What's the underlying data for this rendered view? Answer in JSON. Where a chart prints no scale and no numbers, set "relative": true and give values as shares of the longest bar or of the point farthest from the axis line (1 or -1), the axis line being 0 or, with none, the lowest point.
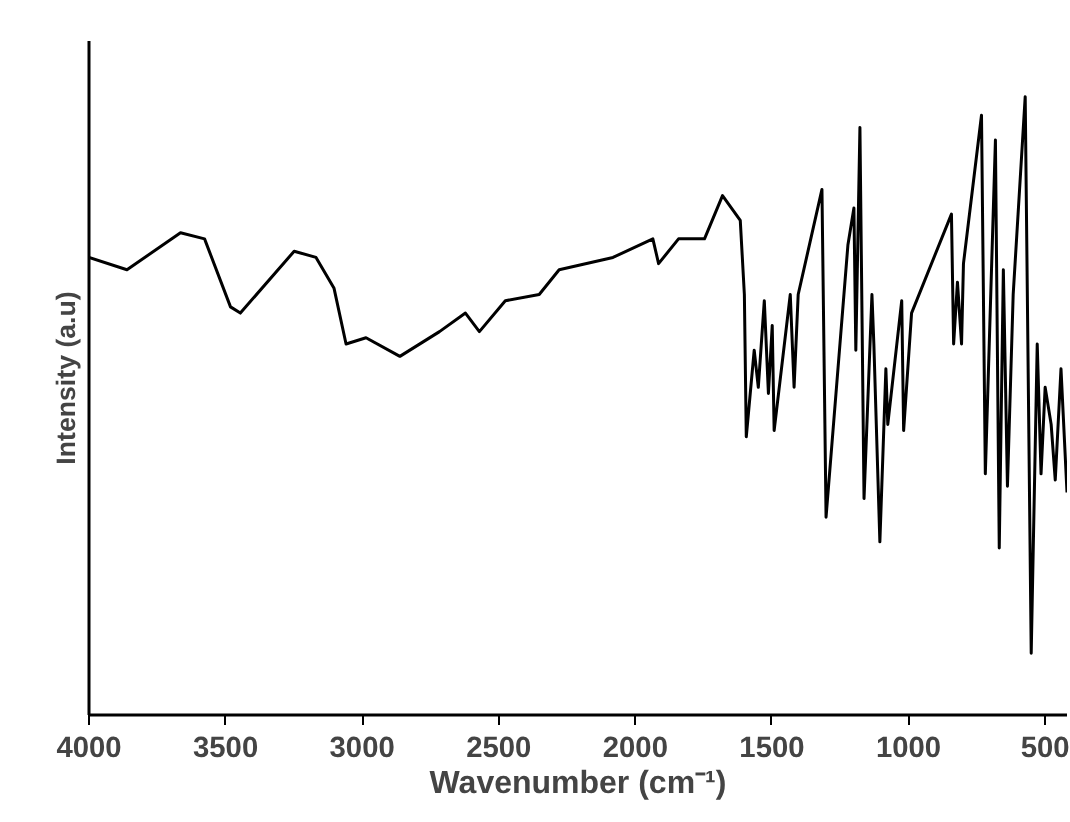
{
  "chart_data": {
    "type": "line",
    "relative": true,
    "xlabel": "Wavenumber (cm⁻¹)",
    "ylabel": "Intensity (a.u)",
    "xlim": [
      4000,
      420
    ],
    "xticks": [
      4000,
      3500,
      3000,
      2500,
      2000,
      1500,
      1000,
      500
    ],
    "grid": false,
    "marker": "none",
    "line_style": "solid",
    "series": [
      {
        "color": "#000000",
        "x": [
          4000,
          3861,
          3665,
          3577,
          3482,
          3446,
          3249,
          3169,
          3103,
          3059,
          2986,
          2862,
          2717,
          2622,
          2571,
          2476,
          2352,
          2279,
          2082,
          1936,
          1915,
          1842,
          1747,
          1681,
          1616,
          1601,
          1594,
          1565,
          1550,
          1528,
          1513,
          1499,
          1492,
          1433,
          1419,
          1404,
          1317,
          1302,
          1222,
          1200,
          1193,
          1178,
          1163,
          1134,
          1127,
          1105,
          1083,
          1076,
          1025,
          1018,
          989,
          843,
          835,
          821,
          806,
          799,
          733,
          719,
          682,
          668,
          653,
          638,
          617,
          573,
          551,
          529,
          515,
          500,
          478,
          463,
          442,
          420
        ],
        "values": [
          0.74,
          0.72,
          0.78,
          0.77,
          0.66,
          0.65,
          0.75,
          0.74,
          0.69,
          0.6,
          0.61,
          0.58,
          0.62,
          0.65,
          0.62,
          0.67,
          0.68,
          0.72,
          0.74,
          0.77,
          0.73,
          0.77,
          0.77,
          0.84,
          0.8,
          0.68,
          0.45,
          0.59,
          0.53,
          0.67,
          0.52,
          0.63,
          0.46,
          0.68,
          0.53,
          0.68,
          0.85,
          0.32,
          0.76,
          0.82,
          0.59,
          0.95,
          0.35,
          0.68,
          0.6,
          0.28,
          0.56,
          0.47,
          0.67,
          0.46,
          0.65,
          0.81,
          0.6,
          0.7,
          0.6,
          0.73,
          0.97,
          0.39,
          0.93,
          0.27,
          0.72,
          0.37,
          0.68,
          1,
          0.1,
          0.6,
          0.39,
          0.53,
          0.47,
          0.38,
          0.56,
          0.36
        ]
      }
    ]
  }
}
